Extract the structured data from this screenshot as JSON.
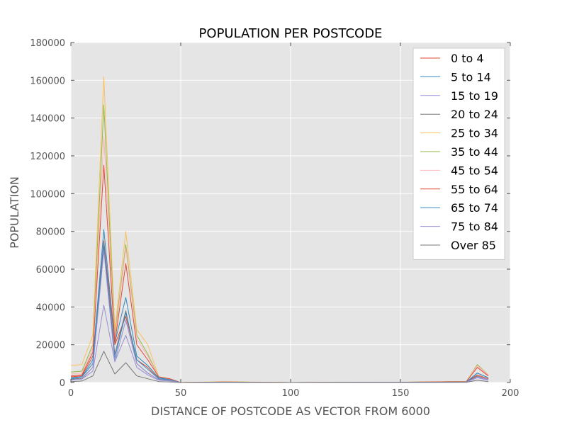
{
  "chart_data": {
    "type": "line",
    "title": "POPULATION PER POSTCODE",
    "xlabel": "DISTANCE OF POSTCODE AS VECTOR FROM 6000",
    "ylabel": "POPULATION",
    "xlim": [
      0,
      200
    ],
    "ylim": [
      0,
      180000
    ],
    "xticks": [
      0,
      50,
      100,
      150,
      200
    ],
    "yticks": [
      0,
      20000,
      40000,
      60000,
      80000,
      100000,
      120000,
      140000,
      160000,
      180000
    ],
    "grid": true,
    "legend_position": "top-right",
    "x": [
      0,
      5,
      10,
      15,
      20,
      25,
      30,
      35,
      40,
      45,
      50,
      70,
      100,
      150,
      180,
      185,
      190
    ],
    "series": [
      {
        "name": "0 to 4",
        "color": "#E24A33",
        "values": [
          3000,
          3500,
          14000,
          75000,
          20000,
          35000,
          12000,
          8000,
          2000,
          1500,
          0,
          200,
          0,
          100,
          300,
          4000,
          2000
        ]
      },
      {
        "name": "5 to 14",
        "color": "#348ABD",
        "values": [
          2500,
          3000,
          12000,
          81000,
          21000,
          45000,
          14000,
          9000,
          2500,
          1500,
          0,
          200,
          0,
          100,
          300,
          5000,
          2500
        ]
      },
      {
        "name": "15 to 19",
        "color": "#988ED5",
        "values": [
          1500,
          1800,
          6000,
          41000,
          11000,
          25000,
          8000,
          4000,
          1200,
          800,
          0,
          100,
          0,
          50,
          200,
          2500,
          1200
        ]
      },
      {
        "name": "20 to 24",
        "color": "#777777",
        "values": [
          1800,
          2200,
          8000,
          72000,
          15000,
          38000,
          10000,
          5000,
          1500,
          1000,
          0,
          100,
          0,
          50,
          200,
          3500,
          1500
        ]
      },
      {
        "name": "25 to 34",
        "color": "#FBC15E",
        "values": [
          9000,
          9500,
          25000,
          162000,
          28000,
          80000,
          28000,
          20000,
          3000,
          2000,
          0,
          400,
          0,
          200,
          500,
          9000,
          4000
        ]
      },
      {
        "name": "35 to 44",
        "color": "#8EBA42",
        "values": [
          5500,
          6000,
          20000,
          147000,
          25000,
          73000,
          25000,
          15000,
          3000,
          2000,
          0,
          300,
          0,
          150,
          500,
          9500,
          4000
        ]
      },
      {
        "name": "45 to 54",
        "color": "#FFB5B8",
        "values": [
          4500,
          5000,
          18000,
          130000,
          23000,
          71000,
          23000,
          14000,
          3000,
          2000,
          0,
          300,
          0,
          150,
          500,
          9000,
          4000
        ]
      },
      {
        "name": "55 to 64",
        "color": "#E24A33",
        "values": [
          3500,
          4000,
          16000,
          115000,
          21000,
          63000,
          20000,
          12000,
          3000,
          2000,
          0,
          300,
          0,
          150,
          500,
          8000,
          3500
        ]
      },
      {
        "name": "65 to 74",
        "color": "#348ABD",
        "values": [
          2000,
          3000,
          10000,
          74000,
          13000,
          37000,
          12000,
          7000,
          2000,
          1500,
          0,
          200,
          0,
          100,
          300,
          5000,
          2500
        ]
      },
      {
        "name": "75 to 84",
        "color": "#988ED5",
        "values": [
          1200,
          2000,
          8000,
          70000,
          11000,
          33000,
          10000,
          5000,
          1500,
          1000,
          0,
          100,
          0,
          50,
          200,
          3000,
          1500
        ]
      },
      {
        "name": "Over 85",
        "color": "#777777",
        "values": [
          500,
          800,
          3500,
          16500,
          4500,
          10500,
          3500,
          2000,
          500,
          300,
          0,
          50,
          0,
          20,
          100,
          1200,
          500
        ]
      }
    ]
  }
}
